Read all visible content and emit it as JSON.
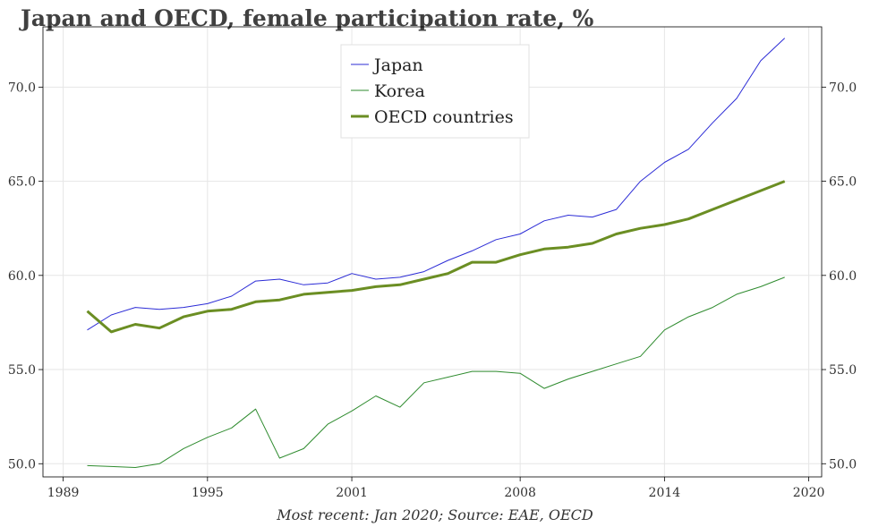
{
  "title": "Japan and OECD, female participation rate, %",
  "source": "Most recent: Jan 2020; Source: EAE, OECD",
  "chart_data": {
    "type": "line",
    "x_ticks": [
      "1989",
      "1995",
      "2001",
      "2008",
      "2014",
      "2020"
    ],
    "y_ticks": [
      "50.0",
      "55.0",
      "60.0",
      "65.0",
      "70.0"
    ],
    "xlim": [
      1989,
      2020
    ],
    "ylim": [
      49.3,
      73.2
    ],
    "grid": true,
    "legend_position": "top-center",
    "x": [
      1990,
      1991,
      1992,
      1993,
      1994,
      1995,
      1996,
      1997,
      1998,
      1999,
      2000,
      2001,
      2002,
      2003,
      2004,
      2005,
      2006,
      2007,
      2008,
      2009,
      2010,
      2011,
      2012,
      2013,
      2014,
      2015,
      2016,
      2017,
      2018,
      2019
    ],
    "series": [
      {
        "name": "Japan",
        "color": "#2b2bd6",
        "width": 1,
        "values": [
          57.1,
          57.9,
          58.3,
          58.2,
          58.3,
          58.5,
          58.9,
          59.7,
          59.8,
          59.5,
          59.6,
          60.1,
          59.8,
          59.9,
          60.2,
          60.8,
          61.3,
          61.9,
          62.2,
          62.9,
          63.2,
          63.1,
          63.5,
          65.0,
          66.0,
          66.7,
          68.1,
          69.4,
          71.4,
          72.6
        ]
      },
      {
        "name": "Korea",
        "color": "#2e8b2e",
        "width": 1,
        "values": [
          49.9,
          49.85,
          49.8,
          50.0,
          50.8,
          51.4,
          51.9,
          52.9,
          50.3,
          50.8,
          52.1,
          52.8,
          53.6,
          53.0,
          54.3,
          54.6,
          54.9,
          54.9,
          54.8,
          54.0,
          54.5,
          54.9,
          55.3,
          55.7,
          57.1,
          57.8,
          58.3,
          59.0,
          59.4,
          59.9
        ]
      },
      {
        "name": "OECD countries",
        "color": "#6b8e23",
        "width": 3,
        "values": [
          58.1,
          57.0,
          57.4,
          57.2,
          57.8,
          58.1,
          58.2,
          58.6,
          58.7,
          59.0,
          59.1,
          59.2,
          59.4,
          59.5,
          59.8,
          60.1,
          60.7,
          60.7,
          61.1,
          61.4,
          61.5,
          61.7,
          62.2,
          62.5,
          62.7,
          63.0,
          63.5,
          64.0,
          64.5,
          65.0
        ]
      }
    ]
  }
}
